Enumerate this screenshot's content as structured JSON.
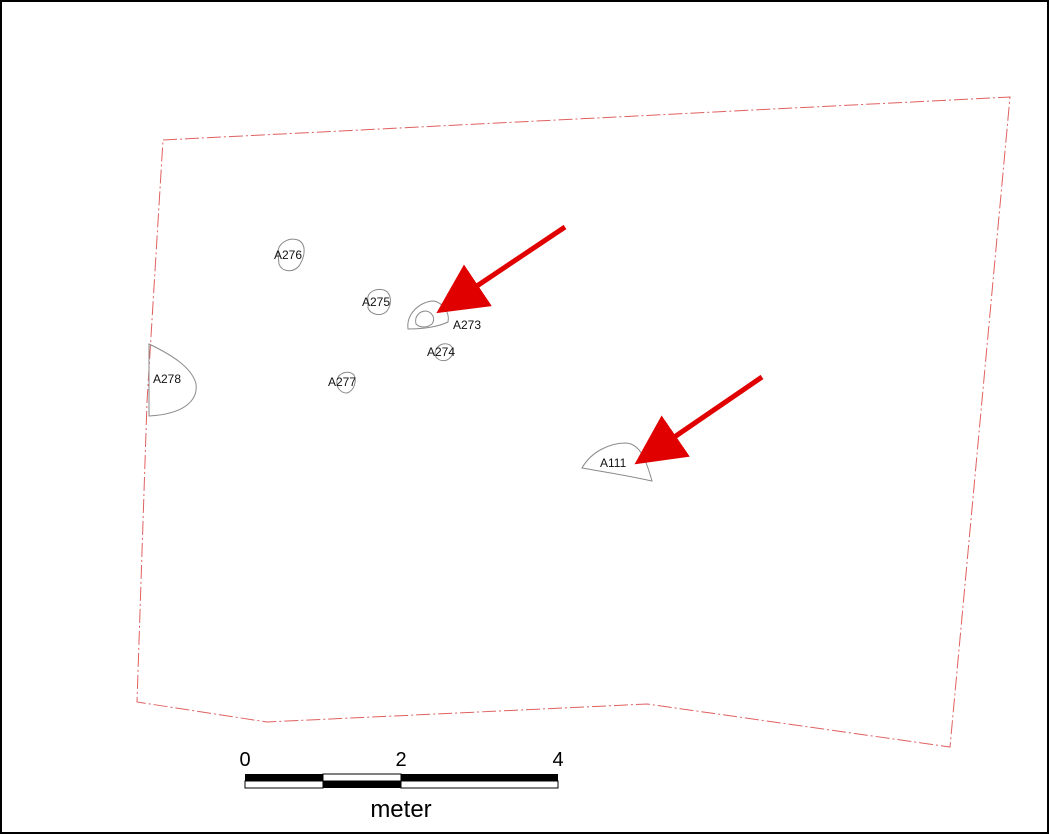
{
  "colors": {
    "boundary": "#e06060",
    "feature_outline": "#8a8a8a",
    "arrow": "#e00000",
    "scale_dark": "#000000",
    "scale_light": "#ffffff",
    "frame": "#000000"
  },
  "features": [
    {
      "id": "A276",
      "label": "A276"
    },
    {
      "id": "A275",
      "label": "A275"
    },
    {
      "id": "A273",
      "label": "A273"
    },
    {
      "id": "A274",
      "label": "A274"
    },
    {
      "id": "A278",
      "label": "A278"
    },
    {
      "id": "A277",
      "label": "A277"
    },
    {
      "id": "A111",
      "label": "A111"
    }
  ],
  "annotations": {
    "arrows": [
      {
        "target": "A273",
        "icon": "arrow-icon"
      },
      {
        "target": "A111",
        "icon": "arrow-icon"
      }
    ]
  },
  "scale_bar": {
    "ticks": [
      "0",
      "2",
      "4"
    ],
    "unit": "meter"
  }
}
